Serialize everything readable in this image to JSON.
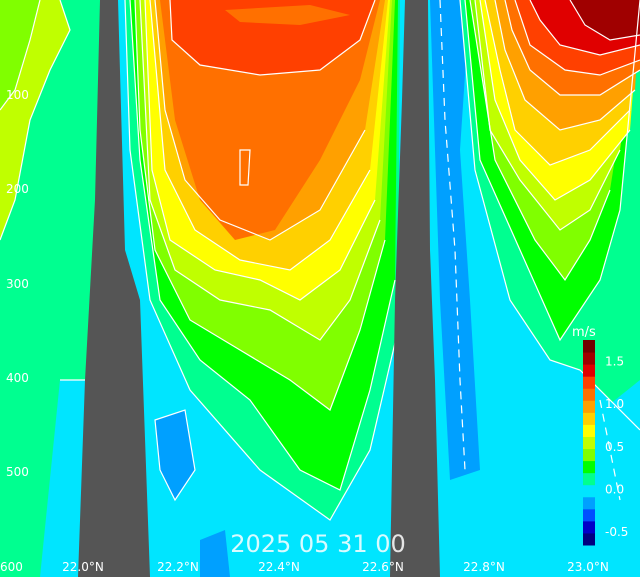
{
  "chart_data": {
    "type": "contour",
    "title": "",
    "xlabel": "",
    "ylabel": "",
    "timestamp": "2025 05 31 00",
    "x_ticks": [
      "22.0°N",
      "22.2°N",
      "22.4°N",
      "22.6°N",
      "22.8°N",
      "23.0°N"
    ],
    "y_ticks": [
      "100",
      "200",
      "300",
      "400",
      "500",
      "600"
    ],
    "x_range": [
      21.9,
      23.05
    ],
    "y_range": [
      0,
      600
    ],
    "colorbar": {
      "unit": "m/s",
      "ticks": [
        "1.5",
        "1.0",
        "0.5",
        "0.0",
        "-0.5"
      ],
      "range": [
        -0.65,
        1.75
      ],
      "colors": [
        "#000080",
        "#0000c8",
        "#0050ff",
        "#00a0ff",
        "#00e5ff",
        "#00ff90",
        "#00ff00",
        "#80ff00",
        "#c0ff00",
        "#ffff00",
        "#ffd000",
        "#ffa000",
        "#ff7000",
        "#ff4000",
        "#e00000",
        "#a00000",
        "#700000"
      ]
    },
    "topography": [
      {
        "name": "ridge-1",
        "lat": [
          21.98,
          22.03,
          22.06,
          22.08,
          22.09,
          22.1
        ],
        "depth_top": [
          600,
          400,
          200,
          0,
          300,
          600
        ]
      },
      {
        "name": "ridge-2",
        "lat": [
          22.62,
          22.65,
          22.67,
          22.68,
          22.7
        ],
        "depth_top": [
          600,
          350,
          0,
          300,
          600
        ]
      }
    ],
    "velocity_field": {
      "units": "m/s",
      "cores": [
        {
          "lat": 22.4,
          "depth": 50,
          "value": 1.1
        },
        {
          "lat": 22.95,
          "depth": 20,
          "value": 1.5
        },
        {
          "lat": 22.3,
          "depth": 450,
          "value": -0.3
        }
      ]
    }
  }
}
